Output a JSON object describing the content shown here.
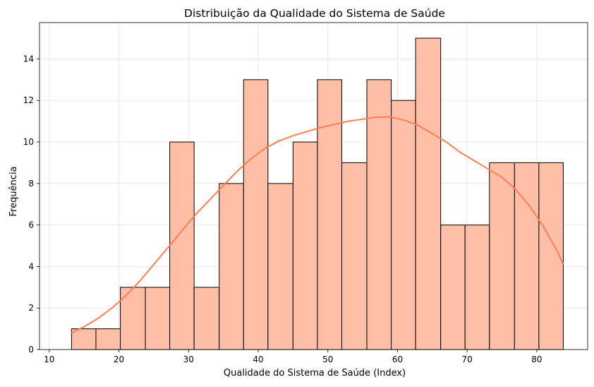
{
  "chart_data": {
    "type": "bar",
    "title": "Distribuição da Qualidade do Sistema de Saúde",
    "xlabel": "Qualidade do Sistema de Saúde (Index)",
    "ylabel": "Frequência",
    "xlim": [
      8.6,
      87.3
    ],
    "ylim": [
      0,
      15.75
    ],
    "xticks": [
      10,
      20,
      30,
      40,
      50,
      60,
      70,
      80
    ],
    "yticks": [
      0,
      2,
      4,
      6,
      8,
      10,
      12,
      14
    ],
    "grid": true,
    "bar_color": "#ffbea6",
    "bar_edge_color": "#000000",
    "kde_color": "#ff7f50",
    "bins": [
      {
        "x0": 13.2,
        "x1": 16.7,
        "count": 1
      },
      {
        "x0": 16.7,
        "x1": 20.2,
        "count": 1
      },
      {
        "x0": 20.2,
        "x1": 23.8,
        "count": 3
      },
      {
        "x0": 23.8,
        "x1": 27.3,
        "count": 3
      },
      {
        "x0": 27.3,
        "x1": 30.8,
        "count": 10
      },
      {
        "x0": 30.8,
        "x1": 34.4,
        "count": 3
      },
      {
        "x0": 34.4,
        "x1": 37.9,
        "count": 8
      },
      {
        "x0": 37.9,
        "x1": 41.4,
        "count": 13
      },
      {
        "x0": 41.4,
        "x1": 45.0,
        "count": 8
      },
      {
        "x0": 45.0,
        "x1": 48.5,
        "count": 10
      },
      {
        "x0": 48.5,
        "x1": 52.0,
        "count": 13
      },
      {
        "x0": 52.0,
        "x1": 55.6,
        "count": 9
      },
      {
        "x0": 55.6,
        "x1": 59.1,
        "count": 13
      },
      {
        "x0": 59.1,
        "x1": 62.6,
        "count": 12
      },
      {
        "x0": 62.6,
        "x1": 66.2,
        "count": 15
      },
      {
        "x0": 66.2,
        "x1": 69.7,
        "count": 6
      },
      {
        "x0": 69.7,
        "x1": 73.2,
        "count": 6
      },
      {
        "x0": 73.2,
        "x1": 76.8,
        "count": 9
      },
      {
        "x0": 76.8,
        "x1": 80.3,
        "count": 9
      },
      {
        "x0": 80.3,
        "x1": 83.8,
        "count": 9
      }
    ],
    "kde": {
      "x": [
        13.2,
        15,
        17,
        19,
        21,
        23,
        25,
        27,
        29,
        31,
        33,
        35,
        37,
        39,
        41,
        43,
        45,
        47,
        49,
        51,
        53,
        55,
        57,
        59,
        61,
        63,
        65,
        67,
        69,
        71,
        73,
        75,
        77,
        79,
        81,
        83,
        83.8
      ],
      "y": [
        0.8,
        1.1,
        1.5,
        2.0,
        2.6,
        3.3,
        4.1,
        4.9,
        5.7,
        6.5,
        7.2,
        7.9,
        8.6,
        9.2,
        9.7,
        10.05,
        10.3,
        10.5,
        10.7,
        10.85,
        11.0,
        11.1,
        11.2,
        11.2,
        11.05,
        10.8,
        10.4,
        10.0,
        9.5,
        9.1,
        8.7,
        8.3,
        7.7,
        6.9,
        5.9,
        4.7,
        4.1
      ]
    }
  }
}
